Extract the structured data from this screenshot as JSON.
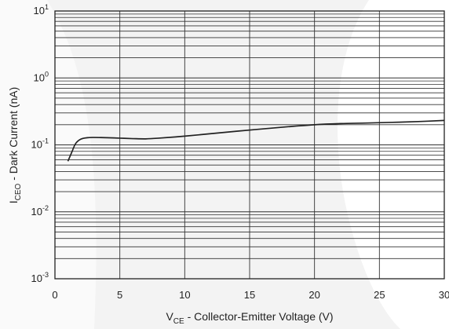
{
  "chart_data": {
    "type": "line",
    "title": "",
    "xlabel": {
      "main": "V",
      "sub": "CE",
      "rest": " - Collector-Emitter Voltage (V)"
    },
    "ylabel": {
      "main": "I",
      "sub": "CEO",
      "rest": " - Dark Current (nA)"
    },
    "x_ticks": [
      "0",
      "5",
      "10",
      "15",
      "20",
      "25",
      "30"
    ],
    "y_ticks": [
      {
        "base": "10",
        "exp": "1"
      },
      {
        "base": "10",
        "exp": "0"
      },
      {
        "base": "10",
        "exp": "-1"
      },
      {
        "base": "10",
        "exp": "-2"
      },
      {
        "base": "10",
        "exp": "-3"
      }
    ],
    "xlim": [
      0,
      30
    ],
    "ylim": [
      0.001,
      10
    ],
    "y_scale": "log",
    "grid": true,
    "legend": "none",
    "series": [
      {
        "x": [
          1.0,
          1.3,
          1.6,
          2.0,
          2.5,
          3.0,
          4.0,
          5.0,
          6.0,
          7.0,
          8.0,
          10.0,
          12.0,
          14.0,
          16.0,
          18.0,
          20.0,
          22.0,
          24.0,
          26.0,
          28.0,
          30.0
        ],
        "y": [
          0.057,
          0.078,
          0.105,
          0.122,
          0.128,
          0.129,
          0.128,
          0.126,
          0.124,
          0.123,
          0.126,
          0.135,
          0.147,
          0.16,
          0.173,
          0.187,
          0.2,
          0.208,
          0.212,
          0.217,
          0.223,
          0.232
        ]
      }
    ],
    "colors": {
      "line": "#222222",
      "grid": "#333333",
      "background_blob": "#f2f2f2"
    }
  }
}
